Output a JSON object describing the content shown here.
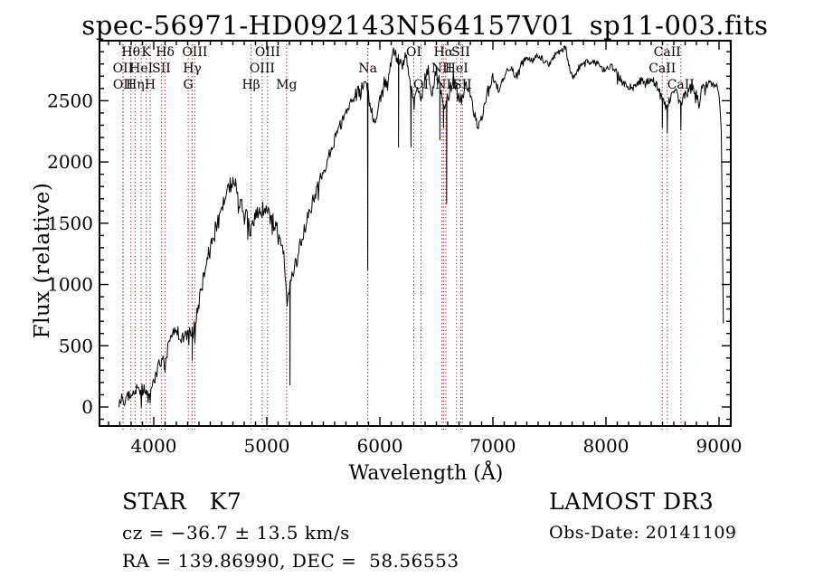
{
  "annotations": {
    "star_class": "STAR   K7",
    "cz_line": "cz = −36.7 ± 13.5 km/s",
    "radec_line": "RA = 139.86990, DEC =  58.56553",
    "survey": "LAMOST DR3",
    "obs_date": "Obs-Date: 20141109"
  },
  "chart_data": {
    "type": "line",
    "title": "spec-56971-HD092143N564157V01_sp11-003.fits",
    "xlabel": "Wavelength (Å)",
    "ylabel": "Flux (relative)",
    "x_ticks": [
      4000,
      5000,
      6000,
      7000,
      8000,
      9000
    ],
    "y_ticks": [
      0,
      500,
      1000,
      1500,
      2000,
      2500
    ],
    "x_axis_range": [
      3520,
      9104
    ],
    "y_axis_range": [
      -155,
      2990
    ],
    "x_minor_step": 100,
    "y_minor_step": 100,
    "grid": false,
    "legend": "none",
    "spectrum_color": "#000000",
    "line_marker_color": "#9e2f2f",
    "spectral_lines": [
      {
        "label": "OII",
        "wavelength": 3727,
        "row": 2
      },
      {
        "label": "OII",
        "wavelength": 3729,
        "row": 3
      },
      {
        "label": "Hθ",
        "wavelength": 3798,
        "row": 1
      },
      {
        "label": "Hη",
        "wavelength": 3835,
        "row": 3
      },
      {
        "label": "HeI",
        "wavelength": 3889,
        "row": 2
      },
      {
        "label": "K",
        "wavelength": 3933,
        "row": 1
      },
      {
        "label": "H",
        "wavelength": 3968,
        "row": 3
      },
      {
        "label": "SII",
        "wavelength": 4068,
        "row": 2
      },
      {
        "label": "Hδ",
        "wavelength": 4101,
        "row": 1
      },
      {
        "label": "G",
        "wavelength": 4305,
        "row": 3
      },
      {
        "label": "Hγ",
        "wavelength": 4340,
        "row": 2
      },
      {
        "label": "OIII",
        "wavelength": 4363,
        "row": 1
      },
      {
        "label": "Hβ",
        "wavelength": 4861,
        "row": 3
      },
      {
        "label": "OIII",
        "wavelength": 4959,
        "row": 2
      },
      {
        "label": "OIII",
        "wavelength": 5007,
        "row": 1
      },
      {
        "label": "Mg",
        "wavelength": 5175,
        "row": 3
      },
      {
        "label": "Na",
        "wavelength": 5893,
        "row": 2
      },
      {
        "label": "OI",
        "wavelength": 6300,
        "row": 1
      },
      {
        "label": "OI",
        "wavelength": 6364,
        "row": 3
      },
      {
        "label": "NII",
        "wavelength": 6548,
        "row": 2
      },
      {
        "label": "Hα",
        "wavelength": 6563,
        "row": 1
      },
      {
        "label": "NII",
        "wavelength": 6583,
        "row": 3
      },
      {
        "label": "HeI",
        "wavelength": 6678,
        "row": 2
      },
      {
        "label": "SII",
        "wavelength": 6716,
        "row": 1
      },
      {
        "label": "SII",
        "wavelength": 6731,
        "row": 3
      },
      {
        "label": "CaII",
        "wavelength": 8498,
        "row": 2
      },
      {
        "label": "CaII",
        "wavelength": 8542,
        "row": 1
      },
      {
        "label": "CaII",
        "wavelength": 8662,
        "row": 3
      }
    ],
    "spectrum_envelope": [
      [
        3692,
        -20
      ],
      [
        3700,
        40
      ],
      [
        3720,
        70
      ],
      [
        3740,
        60
      ],
      [
        3760,
        95
      ],
      [
        3780,
        110
      ],
      [
        3800,
        100
      ],
      [
        3820,
        120
      ],
      [
        3835,
        110
      ],
      [
        3850,
        140
      ],
      [
        3870,
        150
      ],
      [
        3890,
        130
      ],
      [
        3910,
        160
      ],
      [
        3933,
        90
      ],
      [
        3950,
        130
      ],
      [
        3968,
        100
      ],
      [
        3990,
        180
      ],
      [
        4010,
        240
      ],
      [
        4030,
        300
      ],
      [
        4060,
        340
      ],
      [
        4080,
        380
      ],
      [
        4101,
        350
      ],
      [
        4120,
        480
      ],
      [
        4140,
        560
      ],
      [
        4160,
        600
      ],
      [
        4180,
        620
      ],
      [
        4200,
        640
      ],
      [
        4220,
        610
      ],
      [
        4240,
        580
      ],
      [
        4260,
        555
      ],
      [
        4280,
        600
      ],
      [
        4305,
        575
      ],
      [
        4320,
        620
      ],
      [
        4340,
        600
      ],
      [
        4360,
        680
      ],
      [
        4380,
        750
      ],
      [
        4420,
        950
      ],
      [
        4460,
        1150
      ],
      [
        4500,
        1300
      ],
      [
        4530,
        1400
      ],
      [
        4560,
        1500
      ],
      [
        4600,
        1650
      ],
      [
        4640,
        1750
      ],
      [
        4680,
        1820
      ],
      [
        4700,
        1850
      ],
      [
        4730,
        1780
      ],
      [
        4760,
        1680
      ],
      [
        4790,
        1600
      ],
      [
        4820,
        1550
      ],
      [
        4861,
        1420
      ],
      [
        4880,
        1500
      ],
      [
        4910,
        1570
      ],
      [
        4940,
        1600
      ],
      [
        4970,
        1620
      ],
      [
        5000,
        1600
      ],
      [
        5030,
        1550
      ],
      [
        5060,
        1500
      ],
      [
        5090,
        1450
      ],
      [
        5120,
        1400
      ],
      [
        5150,
        1280
      ],
      [
        5167,
        1050
      ],
      [
        5178,
        870
      ],
      [
        5195,
        950
      ],
      [
        5215,
        1020
      ],
      [
        5240,
        1120
      ],
      [
        5270,
        1220
      ],
      [
        5300,
        1350
      ],
      [
        5340,
        1480
      ],
      [
        5380,
        1600
      ],
      [
        5420,
        1720
      ],
      [
        5460,
        1820
      ],
      [
        5500,
        1930
      ],
      [
        5540,
        2030
      ],
      [
        5580,
        2130
      ],
      [
        5620,
        2220
      ],
      [
        5660,
        2320
      ],
      [
        5700,
        2420
      ],
      [
        5740,
        2480
      ],
      [
        5780,
        2540
      ],
      [
        5820,
        2580
      ],
      [
        5860,
        2620
      ],
      [
        5893,
        2640
      ],
      [
        5906,
        2450
      ],
      [
        5930,
        2400
      ],
      [
        5960,
        2350
      ],
      [
        6000,
        2500
      ],
      [
        6040,
        2650
      ],
      [
        6080,
        2750
      ],
      [
        6120,
        2890
      ],
      [
        6160,
        2850
      ],
      [
        6200,
        2800
      ],
      [
        6240,
        2880
      ],
      [
        6270,
        2600
      ],
      [
        6300,
        2500
      ],
      [
        6330,
        2650
      ],
      [
        6365,
        2500
      ],
      [
        6400,
        2700
      ],
      [
        6430,
        2750
      ],
      [
        6460,
        2550
      ],
      [
        6500,
        2750
      ],
      [
        6540,
        2600
      ],
      [
        6563,
        2450
      ],
      [
        6610,
        2550
      ],
      [
        6650,
        2700
      ],
      [
        6680,
        2600
      ],
      [
        6716,
        2500
      ],
      [
        6731,
        2550
      ],
      [
        6760,
        2620
      ],
      [
        6800,
        2550
      ],
      [
        6840,
        2380
      ],
      [
        6870,
        2280
      ],
      [
        6900,
        2350
      ],
      [
        6930,
        2500
      ],
      [
        6960,
        2600
      ],
      [
        7000,
        2700
      ],
      [
        7050,
        2580
      ],
      [
        7100,
        2700
      ],
      [
        7150,
        2780
      ],
      [
        7200,
        2700
      ],
      [
        7250,
        2800
      ],
      [
        7300,
        2850
      ],
      [
        7350,
        2830
      ],
      [
        7400,
        2870
      ],
      [
        7450,
        2830
      ],
      [
        7500,
        2800
      ],
      [
        7550,
        2880
      ],
      [
        7600,
        2900
      ],
      [
        7640,
        2950
      ],
      [
        7680,
        2750
      ],
      [
        7720,
        2680
      ],
      [
        7760,
        2780
      ],
      [
        7800,
        2830
      ],
      [
        7850,
        2800
      ],
      [
        7900,
        2820
      ],
      [
        7950,
        2780
      ],
      [
        8000,
        2750
      ],
      [
        8050,
        2780
      ],
      [
        8100,
        2720
      ],
      [
        8150,
        2650
      ],
      [
        8200,
        2600
      ],
      [
        8250,
        2620
      ],
      [
        8300,
        2670
      ],
      [
        8350,
        2640
      ],
      [
        8400,
        2680
      ],
      [
        8450,
        2640
      ],
      [
        8498,
        2500
      ],
      [
        8542,
        2450
      ],
      [
        8600,
        2600
      ],
      [
        8662,
        2480
      ],
      [
        8700,
        2560
      ],
      [
        8750,
        2620
      ],
      [
        8800,
        2560
      ],
      [
        8824,
        2450
      ],
      [
        8850,
        2620
      ],
      [
        8900,
        2640
      ],
      [
        8950,
        2620
      ],
      [
        8980,
        2630
      ],
      [
        9005,
        2500
      ],
      [
        9020,
        2250
      ],
      [
        9032,
        1200
      ],
      [
        9040,
        480
      ]
    ],
    "absorption_spikes": [
      [
        4340,
        380
      ],
      [
        5205,
        180
      ],
      [
        5893,
        1120
      ],
      [
        6165,
        2120
      ],
      [
        6275,
        2120
      ],
      [
        6530,
        2180
      ],
      [
        6563,
        2280
      ],
      [
        6590,
        1660
      ],
      [
        8498,
        2280
      ],
      [
        8542,
        2240
      ],
      [
        8662,
        2260
      ]
    ],
    "noise_profile": [
      [
        3690,
        45
      ],
      [
        3900,
        55
      ],
      [
        4100,
        70
      ],
      [
        4300,
        60
      ],
      [
        4500,
        80
      ],
      [
        4700,
        70
      ],
      [
        4900,
        65
      ],
      [
        5100,
        70
      ],
      [
        5300,
        60
      ],
      [
        5600,
        50
      ],
      [
        5900,
        55
      ],
      [
        6100,
        50
      ],
      [
        6350,
        45
      ],
      [
        6600,
        55
      ],
      [
        6900,
        40
      ],
      [
        7100,
        28
      ],
      [
        7400,
        26
      ],
      [
        7700,
        28
      ],
      [
        8000,
        28
      ],
      [
        8300,
        38
      ],
      [
        8600,
        42
      ],
      [
        8900,
        32
      ],
      [
        9040,
        25
      ]
    ]
  }
}
